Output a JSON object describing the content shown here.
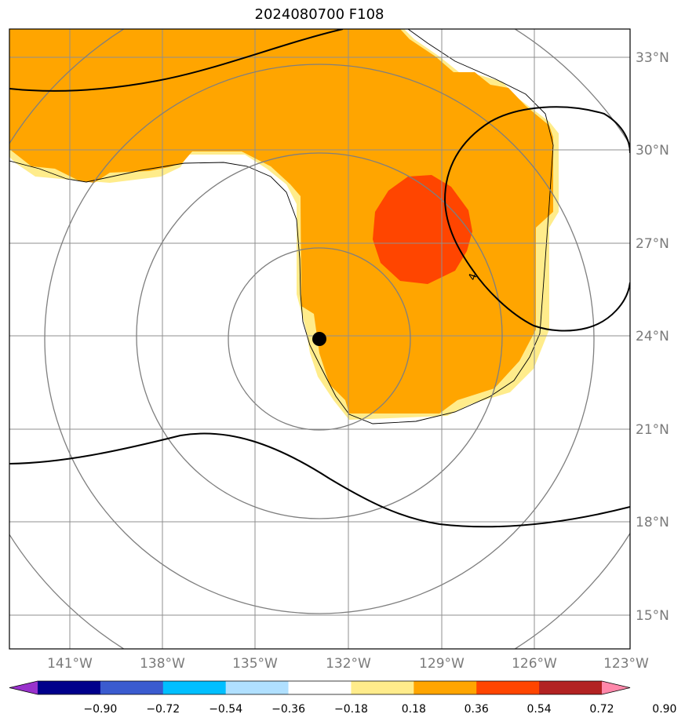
{
  "title": "2024080700 F108",
  "map": {
    "lat_labels": [
      "33°N",
      "30°N",
      "27°N",
      "24°N",
      "21°N",
      "18°N",
      "15°N"
    ],
    "lon_labels": [
      "141°W",
      "138°W",
      "135°W",
      "132°W",
      "129°W",
      "126°W",
      "123°W"
    ],
    "storm_center": {
      "lon": "133°W",
      "lat": "23.9°N"
    },
    "contour_label": "4"
  },
  "colorbar": {
    "levels": [
      "−0.90",
      "−0.72",
      "−0.54",
      "−0.36",
      "−0.18",
      "0.18",
      "0.36",
      "0.54",
      "0.72",
      "0.90"
    ],
    "colors": [
      "#9932CC",
      "#00008B",
      "#3A5BCF",
      "#00BFFF",
      "#B0E0FF",
      "#FFFFFF",
      "#FFEC8B",
      "#FFA500",
      "#FF4500",
      "#B22222",
      "#FF88AA"
    ]
  },
  "fill_colors": {
    "light": "#FFEC8B",
    "mid": "#FFA500",
    "high": "#FF4500"
  }
}
